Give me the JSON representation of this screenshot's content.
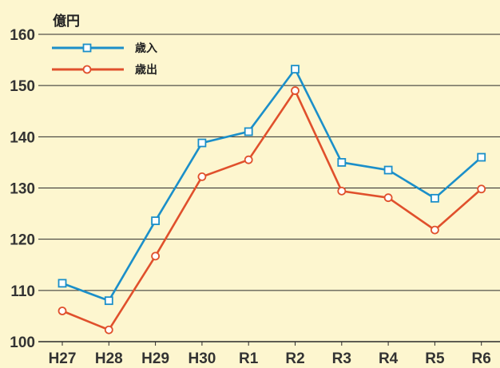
{
  "chart_data": {
    "type": "line",
    "unit_label": "億円",
    "categories": [
      "H27",
      "H28",
      "H29",
      "H30",
      "R1",
      "R2",
      "R3",
      "R4",
      "R5",
      "R6"
    ],
    "series": [
      {
        "name": "歳入",
        "color": "#1b8fc9",
        "marker": "square",
        "values": [
          111.4,
          108.0,
          123.6,
          138.8,
          141.0,
          153.2,
          135.0,
          133.5,
          128.0,
          136.0
        ]
      },
      {
        "name": "歳出",
        "color": "#e0502c",
        "marker": "circle",
        "values": [
          106.0,
          102.3,
          116.7,
          132.2,
          135.5,
          149.0,
          129.4,
          128.1,
          121.8,
          129.8
        ]
      }
    ],
    "ylim": [
      100,
      160
    ],
    "yticks": [
      100,
      110,
      120,
      130,
      140,
      150,
      160
    ],
    "grid": true,
    "legend_position": "top-left"
  }
}
